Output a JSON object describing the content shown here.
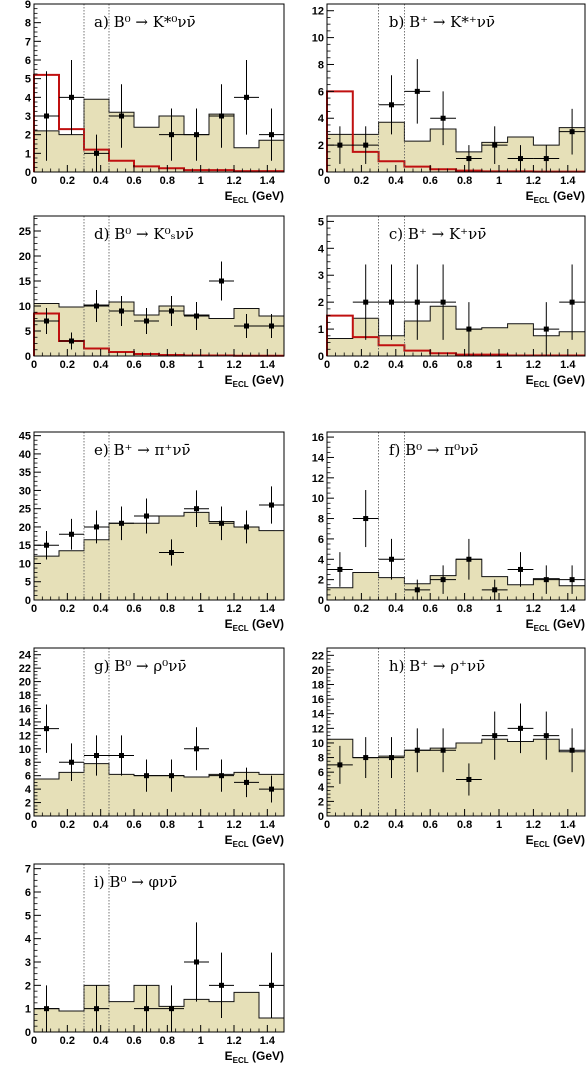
{
  "colors": {
    "fill": "#e6e0b8",
    "fill_edge": "#111111",
    "signal": "#c01010",
    "points": "#000000",
    "cut_line": "#555555"
  },
  "chart_data": [
    {
      "type": "bar",
      "title": "a) B⁰ → K*⁰νν̄",
      "xlabel": "E",
      "xlabel_sub": "ECL",
      "xlabel_unit": " (GeV)",
      "xlim": [
        0,
        1.5
      ],
      "ylim": [
        0,
        9
      ],
      "yticks": [
        "0",
        "1",
        "2",
        "3",
        "4",
        "5",
        "6",
        "7",
        "8",
        "9"
      ],
      "xticks": [
        "0",
        "0.2",
        "0.4",
        "0.6",
        "0.8",
        "1",
        "1.2",
        "1.4"
      ],
      "bin_edges": [
        0,
        0.15,
        0.3,
        0.45,
        0.6,
        0.75,
        0.9,
        1.05,
        1.2,
        1.35,
        1.5
      ],
      "background": [
        2.2,
        2.0,
        3.9,
        3.2,
        2.4,
        3.0,
        2.0,
        3.1,
        1.3,
        1.7
      ],
      "signal": [
        5.2,
        2.3,
        1.2,
        0.6,
        0.3,
        0.2,
        0.1,
        0.1,
        0.05,
        0.05
      ],
      "points": {
        "x": [
          0.075,
          0.225,
          0.375,
          0.525,
          0.825,
          0.975,
          1.125,
          1.275,
          1.425
        ],
        "y": [
          3,
          4,
          1,
          3,
          2,
          2,
          3,
          4,
          2
        ],
        "err": [
          2.4,
          2.0,
          1.0,
          1.7,
          1.4,
          1.4,
          1.7,
          2.0,
          1.4
        ]
      },
      "cuts": [
        0.3,
        0.45
      ]
    },
    {
      "type": "bar",
      "title": "b) B⁺ → K*⁺νν̄",
      "xlabel": "E",
      "xlabel_sub": "ECL",
      "xlabel_unit": " (GeV)",
      "xlim": [
        0,
        1.5
      ],
      "ylim": [
        0,
        12.5
      ],
      "yticks": [
        "0",
        "2",
        "4",
        "6",
        "8",
        "10",
        "12"
      ],
      "xticks": [
        "0",
        "0.2",
        "0.4",
        "0.6",
        "0.8",
        "1",
        "1.2",
        "1.4"
      ],
      "bin_edges": [
        0,
        0.15,
        0.3,
        0.45,
        0.6,
        0.75,
        0.9,
        1.05,
        1.2,
        1.35,
        1.5
      ],
      "background": [
        2.8,
        2.8,
        3.7,
        2.3,
        3.2,
        1.5,
        2.2,
        2.6,
        2.0,
        3.3
      ],
      "signal": [
        6.0,
        1.5,
        0.8,
        0.4,
        0.2,
        0.1,
        0.05,
        0.05,
        0.03,
        0.03
      ],
      "points": {
        "x": [
          0.075,
          0.225,
          0.375,
          0.525,
          0.675,
          0.825,
          0.975,
          1.125,
          1.275,
          1.425
        ],
        "y": [
          2,
          2,
          5,
          6,
          4,
          1,
          2,
          1,
          1,
          3
        ],
        "err": [
          1.4,
          1.4,
          2.2,
          2.4,
          2.0,
          1.0,
          1.4,
          1.0,
          1.0,
          1.7
        ]
      },
      "cuts": [
        0.3,
        0.45
      ]
    },
    {
      "type": "bar",
      "title": "d) B⁰ → K⁰ₛνν̄",
      "xlabel": "E",
      "xlabel_sub": "ECL",
      "xlabel_unit": " (GeV)",
      "xlim": [
        0,
        1.5
      ],
      "ylim": [
        0,
        28
      ],
      "yticks": [
        "0",
        "5",
        "10",
        "15",
        "20",
        "25"
      ],
      "xticks": [
        "0",
        "0.2",
        "0.4",
        "0.6",
        "0.8",
        "1",
        "1.2",
        "1.4"
      ],
      "bin_edges": [
        0,
        0.15,
        0.3,
        0.45,
        0.6,
        0.75,
        0.9,
        1.05,
        1.2,
        1.35,
        1.5
      ],
      "background": [
        10.5,
        9.8,
        10.2,
        10.8,
        8.2,
        10.0,
        8.2,
        7.5,
        9.5,
        8.0
      ],
      "signal": [
        8.5,
        3.0,
        1.5,
        0.8,
        0.4,
        0.2,
        0.1,
        0.1,
        0.05,
        0.05
      ],
      "points": {
        "x": [
          0.075,
          0.225,
          0.375,
          0.525,
          0.675,
          0.825,
          0.975,
          1.125,
          1.275,
          1.425
        ],
        "y": [
          7,
          3,
          10,
          9,
          7,
          9,
          8,
          15,
          6,
          6
        ],
        "err": [
          2.6,
          1.7,
          3.2,
          3.0,
          2.6,
          3.0,
          2.8,
          3.9,
          2.4,
          2.4
        ],
        "xerr_idx": []
      },
      "cuts": [
        0.3,
        0.45
      ]
    },
    {
      "type": "bar",
      "title": "c) B⁺ → K⁺νν̄",
      "xlabel": "E",
      "xlabel_sub": "ECL",
      "xlabel_unit": " (GeV)",
      "xlim": [
        0,
        1.5
      ],
      "ylim": [
        0,
        5.2
      ],
      "yticks": [
        "0",
        "1",
        "2",
        "3",
        "4",
        "5"
      ],
      "xticks": [
        "0",
        "0.2",
        "0.4",
        "0.6",
        "0.8",
        "1",
        "1.2",
        "1.4"
      ],
      "bin_edges": [
        0,
        0.15,
        0.3,
        0.45,
        0.6,
        0.75,
        0.9,
        1.05,
        1.2,
        1.35,
        1.5
      ],
      "background": [
        0.65,
        1.4,
        0.75,
        1.3,
        1.85,
        1.0,
        1.05,
        1.2,
        0.75,
        0.9
      ],
      "signal": [
        1.5,
        0.7,
        0.4,
        0.2,
        0.1,
        0.05,
        0.05,
        0.02,
        0.02,
        0.02
      ],
      "points": {
        "x": [
          0.225,
          0.375,
          0.525,
          0.675,
          0.825,
          1.275,
          1.425
        ],
        "y": [
          2,
          2,
          2,
          2,
          1,
          1,
          2
        ],
        "err": [
          1.4,
          1.4,
          1.4,
          1.4,
          1.0,
          1.0,
          1.4
        ]
      },
      "cuts": [
        0.3,
        0.45
      ]
    },
    {
      "type": "bar",
      "title": "e) B⁺ → π⁺νν̄",
      "xlabel": "E",
      "xlabel_sub": "ECL",
      "xlabel_unit": " (GeV)",
      "xlim": [
        0,
        1.5
      ],
      "ylim": [
        0,
        46
      ],
      "yticks": [
        "0",
        "5",
        "10",
        "15",
        "20",
        "25",
        "30",
        "35",
        "40",
        "45"
      ],
      "xticks": [
        "0",
        "0.2",
        "0.4",
        "0.6",
        "0.8",
        "1",
        "1.2",
        "1.4"
      ],
      "bin_edges": [
        0,
        0.15,
        0.3,
        0.45,
        0.6,
        0.75,
        0.9,
        1.05,
        1.2,
        1.35,
        1.5
      ],
      "background": [
        12,
        13.5,
        16.5,
        21,
        21,
        23,
        24,
        21.5,
        20,
        19
      ],
      "signal": [],
      "points": {
        "x": [
          0.075,
          0.225,
          0.375,
          0.525,
          0.675,
          0.825,
          0.975,
          1.125,
          1.275,
          1.425
        ],
        "y": [
          15,
          18,
          20,
          21,
          23,
          13,
          25,
          21,
          20,
          26
        ],
        "err": [
          3.9,
          4.2,
          4.5,
          4.6,
          4.8,
          3.6,
          5.0,
          4.6,
          4.5,
          5.1
        ]
      },
      "cuts": [
        0.3,
        0.45
      ]
    },
    {
      "type": "bar",
      "title": "f) B⁰ → π⁰νν̄",
      "xlabel": "E",
      "xlabel_sub": "ECL",
      "xlabel_unit": " (GeV)",
      "xlim": [
        0,
        1.5
      ],
      "ylim": [
        0,
        16.5
      ],
      "yticks": [
        "0",
        "2",
        "4",
        "6",
        "8",
        "10",
        "12",
        "14",
        "16"
      ],
      "xticks": [
        "0",
        "0.2",
        "0.4",
        "0.6",
        "0.8",
        "1",
        "1.2",
        "1.4"
      ],
      "bin_edges": [
        0,
        0.15,
        0.3,
        0.45,
        0.6,
        0.75,
        0.9,
        1.05,
        1.2,
        1.35,
        1.5
      ],
      "background": [
        1.2,
        2.7,
        2.2,
        1.6,
        2.4,
        4.0,
        2.3,
        1.5,
        2.1,
        1.4
      ],
      "signal": [],
      "points": {
        "x": [
          0.075,
          0.225,
          0.375,
          0.525,
          0.675,
          0.825,
          0.975,
          1.125,
          1.275,
          1.425
        ],
        "y": [
          3,
          8,
          4,
          1,
          2,
          4,
          1,
          3,
          2,
          2
        ],
        "err": [
          1.7,
          2.8,
          2.0,
          1.0,
          1.4,
          2.0,
          1.0,
          1.7,
          1.4,
          1.4
        ]
      },
      "cuts": [
        0.3,
        0.45
      ]
    },
    {
      "type": "bar",
      "title": "g) B⁰ → ρ⁰νν̄",
      "xlabel": "E",
      "xlabel_sub": "ECL",
      "xlabel_unit": " (GeV)",
      "xlim": [
        0,
        1.5
      ],
      "ylim": [
        0,
        25
      ],
      "yticks": [
        "0",
        "2",
        "4",
        "6",
        "8",
        "10",
        "12",
        "14",
        "16",
        "18",
        "20",
        "22",
        "24"
      ],
      "xticks": [
        "0",
        "0.2",
        "0.4",
        "0.6",
        "0.8",
        "1",
        "1.2",
        "1.4"
      ],
      "bin_edges": [
        0,
        0.15,
        0.3,
        0.45,
        0.6,
        0.75,
        0.9,
        1.05,
        1.2,
        1.35,
        1.5
      ],
      "background": [
        5.5,
        6.5,
        7.8,
        6.2,
        6.0,
        6.0,
        5.8,
        6.2,
        6.5,
        6.2
      ],
      "signal": [],
      "points": {
        "x": [
          0.075,
          0.225,
          0.375,
          0.525,
          0.675,
          0.825,
          0.975,
          1.125,
          1.275,
          1.425
        ],
        "y": [
          13,
          8,
          9,
          9,
          6,
          6,
          10,
          6,
          5,
          4
        ],
        "err": [
          3.6,
          2.8,
          3.0,
          3.0,
          2.4,
          2.4,
          3.2,
          2.4,
          2.2,
          2.0
        ]
      },
      "cuts": [
        0.3,
        0.45
      ]
    },
    {
      "type": "bar",
      "title": "h) B⁺ → ρ⁺νν̄",
      "xlabel": "E",
      "xlabel_sub": "ECL",
      "xlabel_unit": " (GeV)",
      "xlim": [
        0,
        1.5
      ],
      "ylim": [
        0,
        23
      ],
      "yticks": [
        "0",
        "2",
        "4",
        "6",
        "8",
        "10",
        "12",
        "14",
        "16",
        "18",
        "20",
        "22"
      ],
      "xticks": [
        "0",
        "0.2",
        "0.4",
        "0.6",
        "0.8",
        "1",
        "1.2",
        "1.4"
      ],
      "bin_edges": [
        0,
        0.15,
        0.3,
        0.45,
        0.6,
        0.75,
        0.9,
        1.05,
        1.2,
        1.35,
        1.5
      ],
      "background": [
        10.5,
        8.0,
        8.2,
        9.0,
        9.3,
        10.0,
        10.5,
        10.2,
        10.5,
        8.8
      ],
      "signal": [],
      "points": {
        "x": [
          0.075,
          0.225,
          0.375,
          0.525,
          0.675,
          0.825,
          0.975,
          1.125,
          1.275,
          1.425
        ],
        "y": [
          7,
          8,
          8,
          9,
          9,
          5,
          11,
          12,
          11,
          9
        ],
        "err": [
          2.6,
          2.8,
          2.8,
          3.0,
          3.0,
          2.2,
          3.3,
          3.4,
          3.3,
          3.0
        ]
      },
      "cuts": [
        0.3,
        0.45
      ]
    },
    {
      "type": "bar",
      "title": "i) B⁰ → φνν̄",
      "xlabel": "E",
      "xlabel_sub": "ECL",
      "xlabel_unit": " (GeV)",
      "xlim": [
        0,
        1.5
      ],
      "ylim": [
        0,
        7.2
      ],
      "yticks": [
        "0",
        "1",
        "2",
        "3",
        "4",
        "5",
        "6",
        "7"
      ],
      "xticks": [
        "0",
        "0.2",
        "0.4",
        "0.6",
        "0.8",
        "1",
        "1.2",
        "1.4"
      ],
      "bin_edges": [
        0,
        0.15,
        0.3,
        0.45,
        0.6,
        0.75,
        0.9,
        1.05,
        1.2,
        1.35,
        1.5
      ],
      "background": [
        1.0,
        0.9,
        2.0,
        1.3,
        2.0,
        1.1,
        1.4,
        1.3,
        1.7,
        0.6
      ],
      "signal": [],
      "points": {
        "x": [
          0.075,
          0.375,
          0.675,
          0.825,
          0.975,
          1.125,
          1.425
        ],
        "y": [
          1,
          1,
          1,
          1,
          3,
          2,
          2
        ],
        "err": [
          1.0,
          1.0,
          1.0,
          1.0,
          1.7,
          1.4,
          1.4
        ]
      },
      "cuts": [
        0.3,
        0.45
      ]
    }
  ]
}
